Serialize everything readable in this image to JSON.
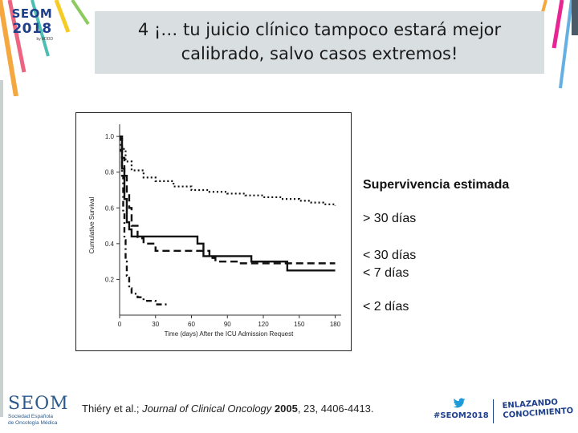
{
  "header": {
    "logo_top": "SEOM",
    "logo_year": "2018",
    "logo_tiny": "by ADDD",
    "title_line1": "4 ¡… tu juicio clínico tampoco estará mejor",
    "title_line2": "calibrado, salvo casos extremos!"
  },
  "colors": {
    "title_bg": "#d9dfe0",
    "brand_blue": "#1e3f8a",
    "twitter_blue": "#1d9bd8",
    "ribbons": [
      "#f39a1e",
      "#e94b6a",
      "#2fb3a6",
      "#f6c200",
      "#7ac143",
      "#e4007f",
      "#4aa3df"
    ]
  },
  "chart_data": {
    "type": "line",
    "xlabel": "Time (days) After the ICU Admission Request",
    "ylabel": "Cumulative Survival",
    "xlim": [
      0,
      185
    ],
    "ylim": [
      0,
      1.05
    ],
    "x_ticks": [
      "0",
      "30",
      "60",
      "90",
      "120",
      "150",
      "180"
    ],
    "x_tick_values": [
      0,
      30,
      60,
      90,
      120,
      150,
      180
    ],
    "y_ticks": [
      "0.2",
      "0.4",
      "0.6",
      "0.8",
      "1.0"
    ],
    "y_tick_values": [
      0.2,
      0.4,
      0.6,
      0.8,
      1.0
    ],
    "grid": false,
    "series": [
      {
        "style": "dotted",
        "x": [
          0,
          2,
          5,
          10,
          20,
          30,
          45,
          60,
          75,
          90,
          105,
          120,
          135,
          150,
          160,
          170,
          180
        ],
        "y": [
          1.0,
          0.93,
          0.86,
          0.81,
          0.77,
          0.75,
          0.72,
          0.7,
          0.69,
          0.68,
          0.67,
          0.66,
          0.65,
          0.64,
          0.63,
          0.62,
          0.61
        ]
      },
      {
        "style": "dashed",
        "x": [
          0,
          2,
          4,
          6,
          8,
          10,
          15,
          20,
          30,
          60,
          75,
          80,
          90,
          100,
          120,
          150,
          180
        ],
        "y": [
          1.0,
          0.88,
          0.78,
          0.68,
          0.6,
          0.5,
          0.43,
          0.4,
          0.36,
          0.36,
          0.32,
          0.3,
          0.3,
          0.29,
          0.29,
          0.29,
          0.29
        ]
      },
      {
        "style": "solid",
        "x": [
          0,
          2,
          4,
          6,
          8,
          10,
          20,
          40,
          60,
          65,
          70,
          80,
          100,
          110,
          130,
          140,
          160,
          180
        ],
        "y": [
          1.0,
          0.82,
          0.65,
          0.52,
          0.48,
          0.44,
          0.44,
          0.44,
          0.44,
          0.4,
          0.33,
          0.33,
          0.33,
          0.3,
          0.3,
          0.25,
          0.25,
          0.25
        ]
      },
      {
        "style": "dashdot",
        "x": [
          0,
          1,
          2,
          3,
          4,
          5,
          6,
          8,
          10,
          15,
          20,
          30,
          40
        ],
        "y": [
          1.0,
          0.92,
          0.78,
          0.58,
          0.42,
          0.3,
          0.22,
          0.15,
          0.12,
          0.1,
          0.08,
          0.06,
          0.05
        ]
      }
    ]
  },
  "legend": {
    "title": "Supervivencia estimada",
    "items": [
      "> 30 días",
      "< 30 días",
      "< 7 días",
      "< 2 días"
    ]
  },
  "footer": {
    "citation_authors": "Thiéry et al.; ",
    "citation_journal": "Journal of Clinical Oncology",
    "citation_year": "2005",
    "citation_rest": ", 23, 4406-4413.",
    "seom_name": "SEOM",
    "seom_sub1": "Sociedad Española",
    "seom_sub2": "de Oncología Médica",
    "twitter_icon": "twitter-bird-icon",
    "hashtag": "#SEOM2018",
    "slogan_line1": "ENLAZANDO",
    "slogan_line2": "CONOCIMIENTO"
  }
}
